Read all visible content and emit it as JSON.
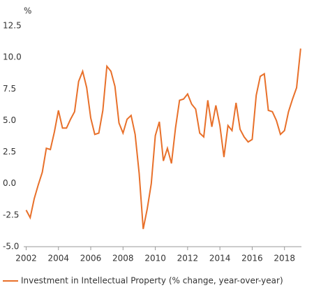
{
  "chart_data": {
    "type": "line",
    "y_label": "%",
    "x": [
      2002.0,
      2002.25,
      2002.5,
      2002.75,
      2003.0,
      2003.25,
      2003.5,
      2003.75,
      2004.0,
      2004.25,
      2004.5,
      2004.75,
      2005.0,
      2005.25,
      2005.5,
      2005.75,
      2006.0,
      2006.25,
      2006.5,
      2006.75,
      2007.0,
      2007.25,
      2007.5,
      2007.75,
      2008.0,
      2008.25,
      2008.5,
      2008.75,
      2009.0,
      2009.25,
      2009.5,
      2009.75,
      2010.0,
      2010.25,
      2010.5,
      2010.75,
      2011.0,
      2011.25,
      2011.5,
      2011.75,
      2012.0,
      2012.25,
      2012.5,
      2012.75,
      2013.0,
      2013.25,
      2013.5,
      2013.75,
      2014.0,
      2014.25,
      2014.5,
      2014.75,
      2015.0,
      2015.25,
      2015.5,
      2015.75,
      2016.0,
      2016.25,
      2016.5,
      2016.75,
      2017.0,
      2017.25,
      2017.5,
      2017.75,
      2018.0,
      2018.25,
      2018.5,
      2018.75,
      2019.0
    ],
    "series": [
      {
        "name": "Investment in Intellectual Property (% change, year-over-year)",
        "color": "#e8702a",
        "values": [
          -2.1,
          -2.7,
          -1.2,
          -0.1,
          0.9,
          2.8,
          2.7,
          4.1,
          5.8,
          4.4,
          4.4,
          5.1,
          5.7,
          8.1,
          8.9,
          7.6,
          5.2,
          3.9,
          4.0,
          5.8,
          9.3,
          8.9,
          7.7,
          4.8,
          4.0,
          5.1,
          5.4,
          3.9,
          0.8,
          -3.6,
          -2.0,
          0.0,
          3.8,
          4.9,
          1.8,
          2.8,
          1.6,
          4.4,
          6.6,
          6.7,
          7.1,
          6.3,
          5.9,
          4.0,
          3.7,
          6.6,
          4.5,
          6.2,
          4.6,
          2.1,
          4.6,
          4.2,
          6.4,
          4.3,
          3.7,
          3.3,
          3.5,
          7.0,
          8.5,
          8.7,
          5.8,
          5.7,
          5.0,
          3.9,
          4.2,
          5.7,
          6.7,
          7.6,
          10.7
        ]
      }
    ],
    "xlim": [
      2001.85,
      2019.05
    ],
    "xticks": [
      2002,
      2004,
      2006,
      2008,
      2010,
      2012,
      2014,
      2016,
      2018
    ],
    "ylim": [
      -5,
      12.5
    ],
    "yticks": [
      {
        "value": -5,
        "label": "-5.0"
      },
      -2.5,
      {
        "value": 0,
        "label": "0.0"
      },
      2.5,
      {
        "value": 5,
        "label": "5.0"
      },
      7.5,
      {
        "value": 10,
        "label": "10.0"
      },
      12.5
    ],
    "grid": false,
    "legend": "bottom-left"
  }
}
